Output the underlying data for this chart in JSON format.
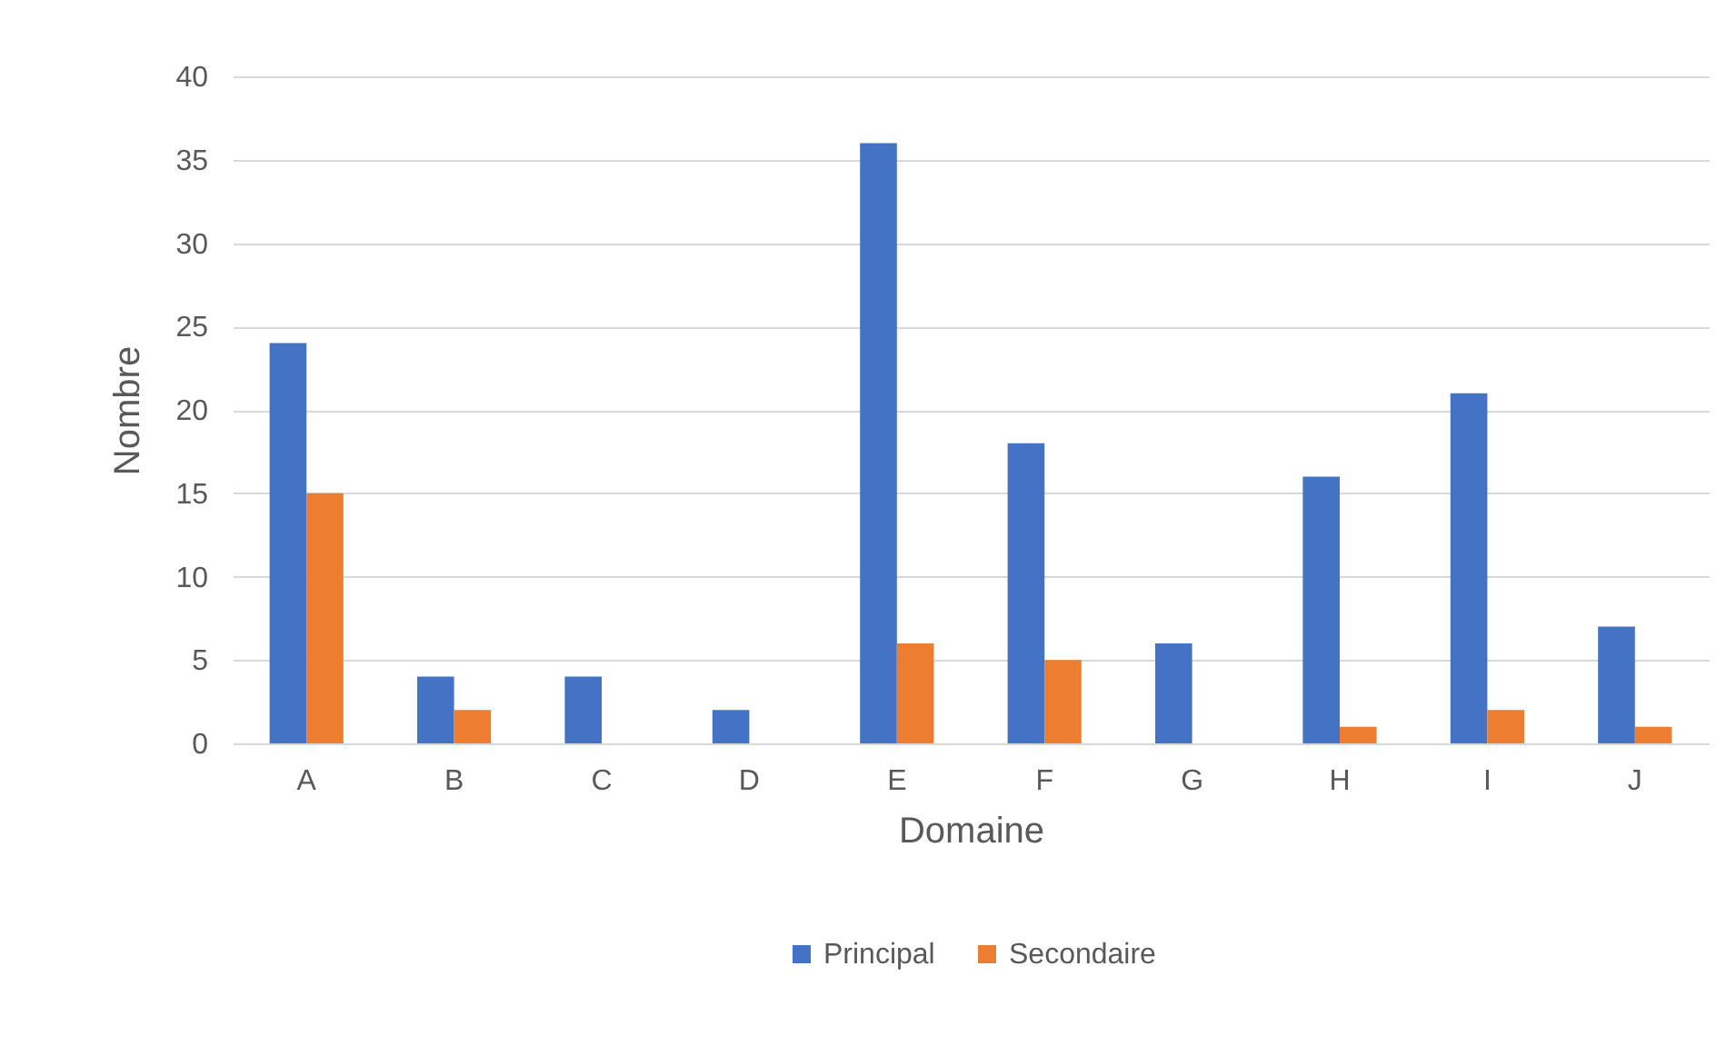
{
  "chart_data": {
    "type": "bar",
    "xlabel": "Domaine",
    "ylabel": "Nombre",
    "categories": [
      "A",
      "B",
      "C",
      "D",
      "E",
      "F",
      "G",
      "H",
      "I",
      "J"
    ],
    "series": [
      {
        "name": "Principal",
        "color": "#4472c4",
        "values": [
          24,
          4,
          4,
          2,
          36,
          18,
          6,
          16,
          21,
          7
        ]
      },
      {
        "name": "Secondaire",
        "color": "#ed7d31",
        "values": [
          15,
          2,
          0,
          0,
          6,
          5,
          0,
          1,
          2,
          1
        ]
      }
    ],
    "ylim": [
      0,
      40
    ],
    "yticks": [
      0,
      5,
      10,
      15,
      20,
      25,
      30,
      35,
      40
    ],
    "grid": "y",
    "legend": "bottom"
  }
}
